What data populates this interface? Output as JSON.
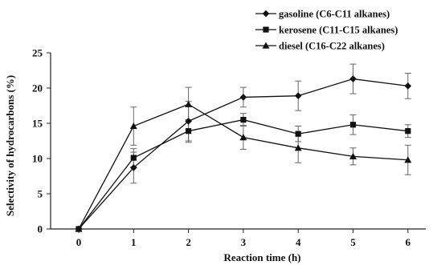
{
  "chart_data": {
    "type": "line",
    "xlabel": "Reaction time (h)",
    "ylabel": "Selectivity of hydrocarbons (%)",
    "x": [
      0,
      1,
      2,
      3,
      4,
      5,
      6
    ],
    "xlim": [
      0,
      6
    ],
    "ylim": [
      0,
      25
    ],
    "yticks": [
      0,
      5,
      10,
      15,
      20,
      25
    ],
    "grid": false,
    "legend_position": "top-right",
    "series": [
      {
        "name": "gasoline (C6-C11 alkanes)",
        "marker": "diamond",
        "values": [
          0,
          8.7,
          15.3,
          18.7,
          18.9,
          21.3,
          20.3
        ],
        "errors": [
          0,
          2.2,
          2.8,
          1.4,
          2.1,
          2.1,
          1.8
        ]
      },
      {
        "name": "kerosene (C11-C15 alkanes)",
        "marker": "square",
        "values": [
          0,
          10.1,
          13.9,
          15.5,
          13.5,
          14.8,
          13.9
        ],
        "errors": [
          0,
          1.3,
          1.6,
          0.9,
          1.1,
          1.4,
          0.9
        ]
      },
      {
        "name": "diesel (C16-C22 alkanes)",
        "marker": "triangle",
        "values": [
          0,
          14.6,
          17.7,
          13.0,
          11.5,
          10.3,
          9.8
        ],
        "errors": [
          0,
          2.7,
          2.4,
          1.7,
          2.1,
          1.2,
          2.1
        ]
      }
    ]
  }
}
